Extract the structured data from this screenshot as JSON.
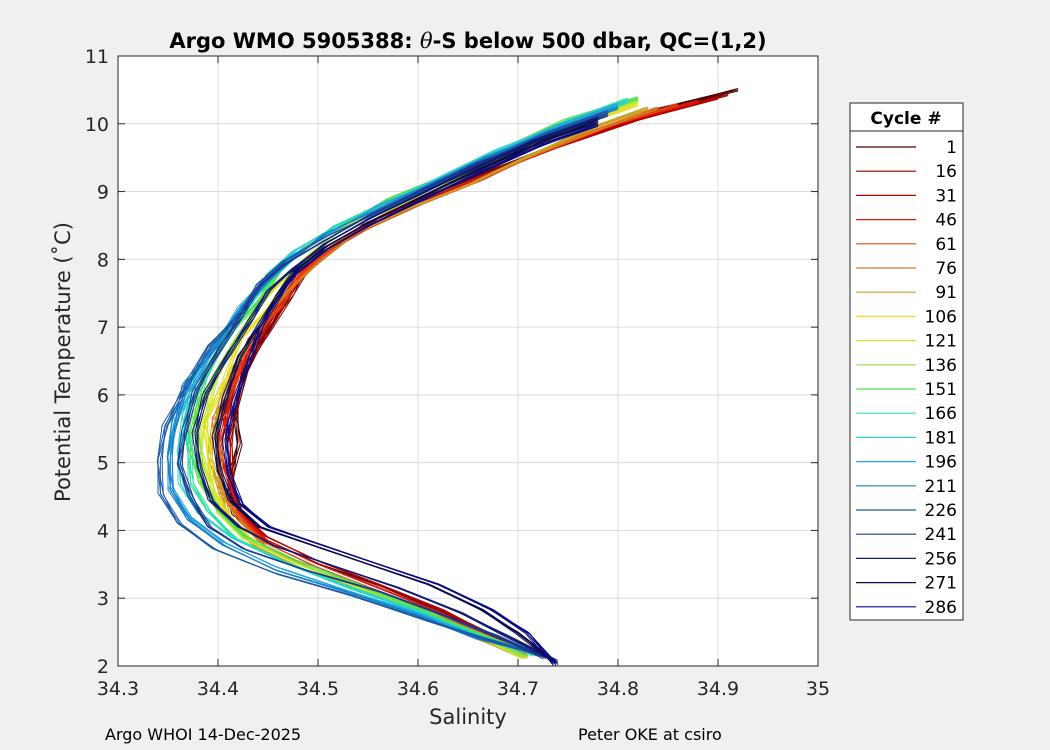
{
  "chart_data": {
    "type": "line",
    "title": "Argo WMO 5905388: θ-S below 500 dbar,  QC=(1,2)",
    "title_parts": {
      "prefix": "Argo WMO 5905388: ",
      "theta": "θ",
      "suffix": "-S below 500 dbar,  QC=(1,2)"
    },
    "xlabel": "Salinity",
    "ylabel": "Potential Temperature (˚C)",
    "xlim": [
      34.3,
      35
    ],
    "ylim": [
      2,
      11
    ],
    "x_ticks": [
      "34.3",
      "34.4",
      "34.5",
      "34.6",
      "34.7",
      "34.8",
      "34.9",
      "35"
    ],
    "y_ticks": [
      "2",
      "3",
      "4",
      "5",
      "6",
      "7",
      "8",
      "9",
      "10",
      "11"
    ],
    "grid": true,
    "legend": {
      "title": "Cycle #",
      "placement": "right-outside",
      "entries": [
        "1",
        "16",
        "31",
        "46",
        "61",
        "76",
        "91",
        "106",
        "121",
        "136",
        "151",
        "166",
        "181",
        "196",
        "211",
        "226",
        "241",
        "256",
        "271",
        "286"
      ],
      "colors": [
        "#4a0000",
        "#8b0000",
        "#b80000",
        "#d81a0a",
        "#e8401a",
        "#d87a1a",
        "#c8a020",
        "#e8e020",
        "#c8e830",
        "#90e040",
        "#50e050",
        "#30e0a0",
        "#30d0d0",
        "#20a8e0",
        "#1a80c8",
        "#1a5aa8",
        "#1a3a90",
        "#101a70",
        "#0a0a50",
        "#0a0a80"
      ]
    },
    "series": [
      {
        "name": "1",
        "x": [
          34.92,
          34.84,
          34.76,
          34.68,
          34.62,
          34.56,
          34.53,
          34.5,
          34.47,
          34.45,
          34.43,
          34.42,
          34.42,
          34.41,
          34.41,
          34.42,
          34.45,
          34.5,
          34.56,
          34.62,
          34.67,
          34.71
        ],
        "y": [
          10.52,
          10.2,
          9.8,
          9.35,
          9.0,
          8.6,
          8.3,
          8.0,
          7.55,
          7.0,
          6.4,
          5.8,
          5.3,
          4.8,
          4.5,
          4.2,
          3.85,
          3.5,
          3.2,
          2.85,
          2.5,
          2.22
        ]
      },
      {
        "name": "16",
        "x": [
          34.91,
          34.83,
          34.75,
          34.67,
          34.61,
          34.56,
          34.52,
          34.49,
          34.47,
          34.45,
          34.43,
          34.42,
          34.41,
          34.41,
          34.42,
          34.45,
          34.5,
          34.56,
          34.62,
          34.67,
          34.71
        ],
        "y": [
          10.45,
          10.1,
          9.7,
          9.3,
          8.95,
          8.6,
          8.25,
          7.9,
          7.45,
          6.95,
          6.35,
          5.8,
          5.3,
          4.75,
          4.3,
          3.9,
          3.55,
          3.2,
          2.85,
          2.5,
          2.22
        ]
      },
      {
        "name": "31",
        "x": [
          34.9,
          34.82,
          34.74,
          34.67,
          34.61,
          34.55,
          34.52,
          34.49,
          34.46,
          34.44,
          34.42,
          34.41,
          34.41,
          34.41,
          34.42,
          34.45,
          34.5,
          34.56,
          34.62,
          34.67,
          34.71
        ],
        "y": [
          10.4,
          10.05,
          9.65,
          9.25,
          8.9,
          8.55,
          8.2,
          7.85,
          7.4,
          6.9,
          6.3,
          5.75,
          5.25,
          4.75,
          4.3,
          3.9,
          3.55,
          3.2,
          2.85,
          2.5,
          2.2
        ]
      },
      {
        "name": "46",
        "x": [
          34.88,
          34.8,
          34.73,
          34.66,
          34.6,
          34.55,
          34.51,
          34.48,
          34.46,
          34.44,
          34.42,
          34.41,
          34.4,
          34.41,
          34.42,
          34.45,
          34.5,
          34.56,
          34.62,
          34.67,
          34.71
        ],
        "y": [
          10.35,
          10.0,
          9.6,
          9.2,
          8.85,
          8.5,
          8.15,
          7.8,
          7.35,
          6.85,
          6.25,
          5.7,
          5.2,
          4.7,
          4.25,
          3.85,
          3.5,
          3.15,
          2.8,
          2.45,
          2.18
        ]
      },
      {
        "name": "61",
        "x": [
          34.86,
          34.79,
          34.72,
          34.66,
          34.6,
          34.55,
          34.51,
          34.48,
          34.46,
          34.43,
          34.42,
          34.4,
          34.4,
          34.4,
          34.42,
          34.45,
          34.5,
          34.56,
          34.62,
          34.67,
          34.71
        ],
        "y": [
          10.3,
          9.95,
          9.55,
          9.15,
          8.8,
          8.45,
          8.1,
          7.75,
          7.3,
          6.8,
          6.2,
          5.65,
          5.15,
          4.65,
          4.2,
          3.8,
          3.45,
          3.1,
          2.78,
          2.45,
          2.18
        ]
      },
      {
        "name": "76",
        "x": [
          34.84,
          34.78,
          34.71,
          34.65,
          34.59,
          34.54,
          34.51,
          34.48,
          34.45,
          34.43,
          34.41,
          34.4,
          34.4,
          34.4,
          34.42,
          34.45,
          34.5,
          34.56,
          34.62,
          34.67,
          34.71
        ],
        "y": [
          10.25,
          9.9,
          9.5,
          9.1,
          8.75,
          8.4,
          8.05,
          7.7,
          7.25,
          6.75,
          6.15,
          5.6,
          5.1,
          4.6,
          4.15,
          3.75,
          3.4,
          3.08,
          2.75,
          2.42,
          2.15
        ]
      },
      {
        "name": "91",
        "x": [
          34.83,
          34.77,
          34.71,
          34.65,
          34.59,
          34.54,
          34.5,
          34.47,
          34.45,
          34.43,
          34.41,
          34.4,
          34.39,
          34.4,
          34.41,
          34.44,
          34.49,
          34.55,
          34.61,
          34.66,
          34.71
        ],
        "y": [
          10.25,
          9.9,
          9.5,
          9.1,
          8.75,
          8.4,
          8.05,
          7.7,
          7.25,
          6.75,
          6.15,
          5.6,
          5.1,
          4.6,
          4.15,
          3.75,
          3.4,
          3.08,
          2.75,
          2.42,
          2.12
        ]
      },
      {
        "name": "106",
        "x": [
          34.82,
          34.76,
          34.7,
          34.64,
          34.58,
          34.54,
          34.5,
          34.47,
          34.45,
          34.42,
          34.41,
          34.39,
          34.39,
          34.39,
          34.41,
          34.44,
          34.49,
          34.55,
          34.61,
          34.66,
          34.71
        ],
        "y": [
          10.3,
          9.95,
          9.55,
          9.15,
          8.8,
          8.45,
          8.1,
          7.75,
          7.3,
          6.8,
          6.2,
          5.65,
          5.15,
          4.65,
          4.2,
          3.8,
          3.45,
          3.1,
          2.78,
          2.45,
          2.12
        ]
      },
      {
        "name": "121",
        "x": [
          34.82,
          34.76,
          34.7,
          34.64,
          34.58,
          34.53,
          34.5,
          34.47,
          34.44,
          34.42,
          34.4,
          34.39,
          34.38,
          34.39,
          34.4,
          34.43,
          34.48,
          34.54,
          34.61,
          34.66,
          34.71
        ],
        "y": [
          10.35,
          10.0,
          9.6,
          9.2,
          8.85,
          8.5,
          8.15,
          7.8,
          7.35,
          6.85,
          6.25,
          5.7,
          5.2,
          4.7,
          4.25,
          3.85,
          3.5,
          3.15,
          2.8,
          2.45,
          2.12
        ]
      },
      {
        "name": "136",
        "x": [
          34.82,
          34.76,
          34.69,
          34.63,
          34.58,
          34.53,
          34.49,
          34.46,
          34.44,
          34.42,
          34.4,
          34.38,
          34.38,
          34.38,
          34.4,
          34.43,
          34.48,
          34.54,
          34.6,
          34.66,
          34.71
        ],
        "y": [
          10.38,
          10.02,
          9.62,
          9.22,
          8.87,
          8.52,
          8.17,
          7.82,
          7.37,
          6.87,
          6.27,
          5.72,
          5.22,
          4.72,
          4.27,
          3.87,
          3.52,
          3.17,
          2.82,
          2.47,
          2.14
        ]
      },
      {
        "name": "151",
        "x": [
          34.82,
          34.75,
          34.69,
          34.63,
          34.57,
          34.53,
          34.49,
          34.46,
          34.44,
          34.41,
          34.39,
          34.38,
          34.37,
          34.38,
          34.4,
          34.43,
          34.48,
          34.54,
          34.6,
          34.66,
          34.72
        ],
        "y": [
          10.4,
          10.05,
          9.65,
          9.25,
          8.9,
          8.55,
          8.2,
          7.85,
          7.4,
          6.9,
          6.3,
          5.75,
          5.25,
          4.75,
          4.3,
          3.9,
          3.55,
          3.2,
          2.85,
          2.5,
          2.16
        ]
      },
      {
        "name": "166",
        "x": [
          34.81,
          34.75,
          34.69,
          34.63,
          34.57,
          34.52,
          34.49,
          34.46,
          34.43,
          34.41,
          34.39,
          34.37,
          34.37,
          34.37,
          34.39,
          34.42,
          34.47,
          34.53,
          34.6,
          34.66,
          34.72
        ],
        "y": [
          10.38,
          10.02,
          9.62,
          9.22,
          8.87,
          8.52,
          8.17,
          7.82,
          7.37,
          6.87,
          6.27,
          5.72,
          5.22,
          4.72,
          4.27,
          3.87,
          3.52,
          3.17,
          2.82,
          2.47,
          2.16
        ]
      },
      {
        "name": "181",
        "x": [
          34.81,
          34.75,
          34.68,
          34.62,
          34.57,
          34.52,
          34.48,
          34.45,
          34.43,
          34.4,
          34.38,
          34.37,
          34.36,
          34.36,
          34.38,
          34.42,
          34.47,
          34.53,
          34.6,
          34.66,
          34.72
        ],
        "y": [
          10.35,
          10.0,
          9.6,
          9.2,
          8.85,
          8.5,
          8.15,
          7.8,
          7.35,
          6.85,
          6.25,
          5.7,
          5.2,
          4.7,
          4.25,
          3.85,
          3.5,
          3.15,
          2.8,
          2.45,
          2.18
        ]
      },
      {
        "name": "196",
        "x": [
          34.8,
          34.74,
          34.68,
          34.62,
          34.56,
          34.52,
          34.48,
          34.45,
          34.42,
          34.4,
          34.38,
          34.36,
          34.35,
          34.35,
          34.37,
          34.41,
          34.46,
          34.53,
          34.6,
          34.66,
          34.72
        ],
        "y": [
          10.3,
          9.95,
          9.55,
          9.15,
          8.8,
          8.45,
          8.1,
          7.75,
          7.3,
          6.8,
          6.2,
          5.65,
          5.15,
          4.65,
          4.2,
          3.8,
          3.45,
          3.1,
          2.78,
          2.45,
          2.2
        ]
      },
      {
        "name": "211",
        "x": [
          34.8,
          34.74,
          34.67,
          34.61,
          34.56,
          34.51,
          34.48,
          34.45,
          34.42,
          34.4,
          34.37,
          34.36,
          34.35,
          34.35,
          34.37,
          34.41,
          34.46,
          34.53,
          34.6,
          34.66,
          34.72
        ],
        "y": [
          10.25,
          9.9,
          9.5,
          9.1,
          8.75,
          8.4,
          8.05,
          7.7,
          7.25,
          6.75,
          6.15,
          5.6,
          5.1,
          4.6,
          4.15,
          3.75,
          3.4,
          3.08,
          2.75,
          2.42,
          2.2
        ]
      },
      {
        "name": "226",
        "x": [
          34.79,
          34.73,
          34.67,
          34.61,
          34.56,
          34.51,
          34.47,
          34.44,
          34.42,
          34.39,
          34.37,
          34.35,
          34.34,
          34.34,
          34.36,
          34.4,
          34.46,
          34.53,
          34.6,
          34.67,
          34.73
        ],
        "y": [
          10.2,
          9.85,
          9.45,
          9.05,
          8.7,
          8.35,
          8.0,
          7.65,
          7.2,
          6.7,
          6.1,
          5.55,
          5.05,
          4.55,
          4.1,
          3.7,
          3.35,
          3.05,
          2.72,
          2.4,
          2.15
        ]
      },
      {
        "name": "241",
        "x": [
          34.79,
          34.73,
          34.66,
          34.6,
          34.55,
          34.51,
          34.47,
          34.44,
          34.42,
          34.4,
          34.38,
          34.37,
          34.36,
          34.37,
          34.39,
          34.43,
          34.49,
          34.56,
          34.62,
          34.68,
          34.73
        ],
        "y": [
          10.15,
          9.8,
          9.4,
          9.0,
          8.65,
          8.3,
          7.95,
          7.6,
          7.15,
          6.65,
          6.05,
          5.5,
          5.0,
          4.5,
          4.05,
          3.7,
          3.4,
          3.1,
          2.78,
          2.45,
          2.12
        ]
      },
      {
        "name": "256",
        "x": [
          34.78,
          34.72,
          34.66,
          34.6,
          34.55,
          34.51,
          34.48,
          34.45,
          34.43,
          34.41,
          34.39,
          34.38,
          34.38,
          34.39,
          34.42,
          34.46,
          34.52,
          34.58,
          34.64,
          34.69,
          34.74
        ],
        "y": [
          10.1,
          9.75,
          9.35,
          8.95,
          8.6,
          8.25,
          7.9,
          7.55,
          7.1,
          6.6,
          6.0,
          5.45,
          4.95,
          4.45,
          4.05,
          3.75,
          3.45,
          3.15,
          2.8,
          2.45,
          2.08
        ]
      },
      {
        "name": "271",
        "x": [
          34.78,
          34.72,
          34.66,
          34.6,
          34.55,
          34.51,
          34.48,
          34.46,
          34.44,
          34.42,
          34.41,
          34.4,
          34.4,
          34.41,
          34.44,
          34.49,
          34.55,
          34.61,
          34.66,
          34.7,
          34.74
        ],
        "y": [
          10.05,
          9.7,
          9.3,
          8.9,
          8.55,
          8.2,
          7.85,
          7.5,
          7.05,
          6.55,
          5.95,
          5.4,
          4.9,
          4.45,
          4.05,
          3.8,
          3.5,
          3.2,
          2.85,
          2.5,
          2.05
        ]
      },
      {
        "name": "286",
        "x": [
          34.78,
          34.72,
          34.66,
          34.6,
          34.55,
          34.51,
          34.48,
          34.46,
          34.44,
          34.43,
          34.42,
          34.41,
          34.41,
          34.42,
          34.45,
          34.5,
          34.56,
          34.62,
          34.67,
          34.71,
          34.74
        ],
        "y": [
          10.0,
          9.65,
          9.25,
          8.85,
          8.5,
          8.15,
          7.8,
          7.45,
          7.0,
          6.5,
          5.9,
          5.35,
          4.85,
          4.4,
          4.05,
          3.8,
          3.5,
          3.2,
          2.85,
          2.5,
          2.02
        ]
      }
    ]
  },
  "footer": {
    "left": "Argo WHOI 14-Dec-2025",
    "right": "Peter OKE at csiro"
  }
}
